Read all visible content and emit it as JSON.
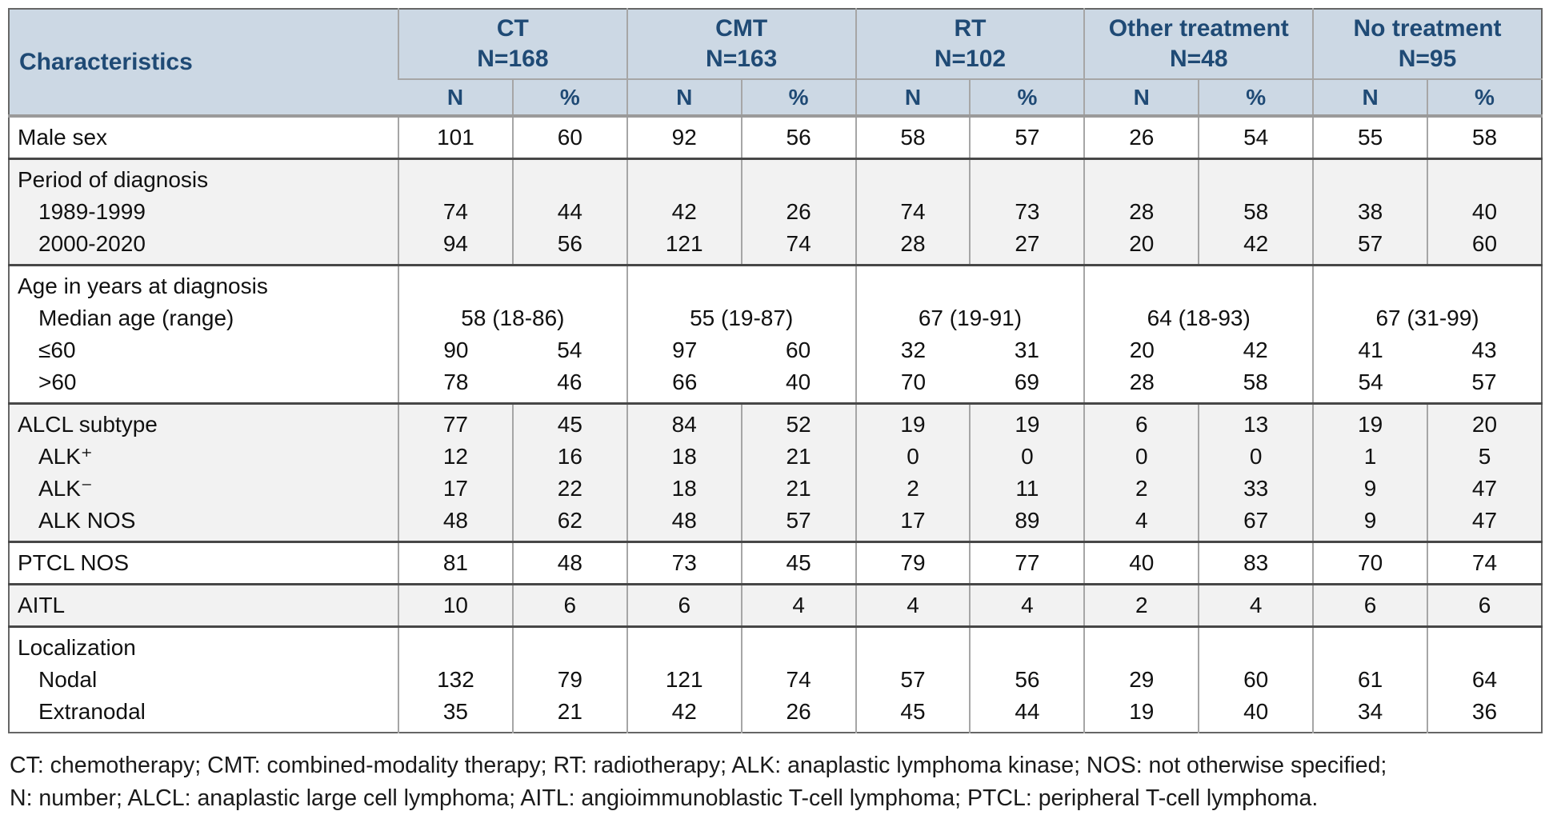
{
  "colors": {
    "header_bg": "#ccd8e4",
    "header_text": "#1f4a75",
    "row_shade": "#f2f2f2",
    "border_light": "#a6a6a6",
    "border_dark": "#474747"
  },
  "table": {
    "char_header": "Characteristics",
    "groups": [
      {
        "label": "CT",
        "n_label": "N=168"
      },
      {
        "label": "CMT",
        "n_label": "N=163"
      },
      {
        "label": "RT",
        "n_label": "N=102"
      },
      {
        "label": "Other treatment",
        "n_label": "N=48"
      },
      {
        "label": "No treatment",
        "n_label": "N=95"
      }
    ],
    "subheaders": [
      "N",
      "%"
    ],
    "blocks": [
      {
        "shade": "white",
        "rows": [
          {
            "label": "Male sex",
            "indent": 0,
            "cells": [
              "101",
              "60",
              "92",
              "56",
              "58",
              "57",
              "26",
              "54",
              "55",
              "58"
            ]
          }
        ]
      },
      {
        "shade": "gray",
        "rows": [
          {
            "label": "Period of diagnosis",
            "indent": 0,
            "cells": [
              "",
              "",
              "",
              "",
              "",
              "",
              "",
              "",
              "",
              ""
            ]
          },
          {
            "label": "1989-1999",
            "indent": 1,
            "cells": [
              "74",
              "44",
              "42",
              "26",
              "74",
              "73",
              "28",
              "58",
              "38",
              "40"
            ]
          },
          {
            "label": "2000-2020",
            "indent": 1,
            "cells": [
              "94",
              "56",
              "121",
              "74",
              "28",
              "27",
              "20",
              "42",
              "57",
              "60"
            ]
          }
        ]
      },
      {
        "shade": "white",
        "no_inner_borders": true,
        "rows": [
          {
            "label": "Age in years at diagnosis",
            "indent": 0,
            "cells": [
              "",
              "",
              "",
              "",
              "",
              "",
              "",
              "",
              "",
              ""
            ]
          },
          {
            "label": "Median age (range)",
            "indent": 1,
            "span": true,
            "cells": [
              "58 (18-86)",
              "55 (19-87)",
              "67 (19-91)",
              "64 (18-93)",
              "67 (31-99)"
            ]
          },
          {
            "label": "≤60",
            "indent": 1,
            "cells": [
              "90",
              "54",
              "97",
              "60",
              "32",
              "31",
              "20",
              "42",
              "41",
              "43"
            ]
          },
          {
            "label": ">60",
            "indent": 1,
            "cells": [
              "78",
              "46",
              "66",
              "40",
              "70",
              "69",
              "28",
              "58",
              "54",
              "57"
            ]
          }
        ]
      },
      {
        "shade": "gray",
        "rows": [
          {
            "label": "ALCL subtype",
            "indent": 0,
            "cells": [
              "77",
              "45",
              "84",
              "52",
              "19",
              "19",
              "6",
              "13",
              "19",
              "20"
            ]
          },
          {
            "label": "ALK⁺",
            "indent": 1,
            "cells": [
              "12",
              "16",
              "18",
              "21",
              "0",
              "0",
              "0",
              "0",
              "1",
              "5"
            ]
          },
          {
            "label": "ALK⁻",
            "indent": 1,
            "cells": [
              "17",
              "22",
              "18",
              "21",
              "2",
              "11",
              "2",
              "33",
              "9",
              "47"
            ]
          },
          {
            "label": "ALK NOS",
            "indent": 1,
            "cells": [
              "48",
              "62",
              "48",
              "57",
              "17",
              "89",
              "4",
              "67",
              "9",
              "47"
            ]
          }
        ]
      },
      {
        "shade": "white",
        "rows": [
          {
            "label": "PTCL NOS",
            "indent": 0,
            "cells": [
              "81",
              "48",
              "73",
              "45",
              "79",
              "77",
              "40",
              "83",
              "70",
              "74"
            ]
          }
        ]
      },
      {
        "shade": "gray",
        "rows": [
          {
            "label": "AITL",
            "indent": 0,
            "cells": [
              "10",
              "6",
              "6",
              "4",
              "4",
              "4",
              "2",
              "4",
              "6",
              "6"
            ]
          }
        ]
      },
      {
        "shade": "white",
        "rows": [
          {
            "label": "Localization",
            "indent": 0,
            "cells": [
              "",
              "",
              "",
              "",
              "",
              "",
              "",
              "",
              "",
              ""
            ]
          },
          {
            "label": "Nodal",
            "indent": 1,
            "cells": [
              "132",
              "79",
              "121",
              "74",
              "57",
              "56",
              "29",
              "60",
              "61",
              "64"
            ]
          },
          {
            "label": "Extranodal",
            "indent": 1,
            "cells": [
              "35",
              "21",
              "42",
              "26",
              "45",
              "44",
              "19",
              "40",
              "34",
              "36"
            ]
          }
        ]
      }
    ]
  },
  "footnote": {
    "line1": "CT: chemotherapy; CMT: combined-modality therapy; RT: radiotherapy; ALK: anaplastic lymphoma kinase; NOS: not otherwise specified;",
    "line2": "N: number; ALCL: anaplastic large cell lymphoma; AITL: angioimmunoblastic T-cell lymphoma; PTCL: peripheral T-cell lymphoma."
  }
}
